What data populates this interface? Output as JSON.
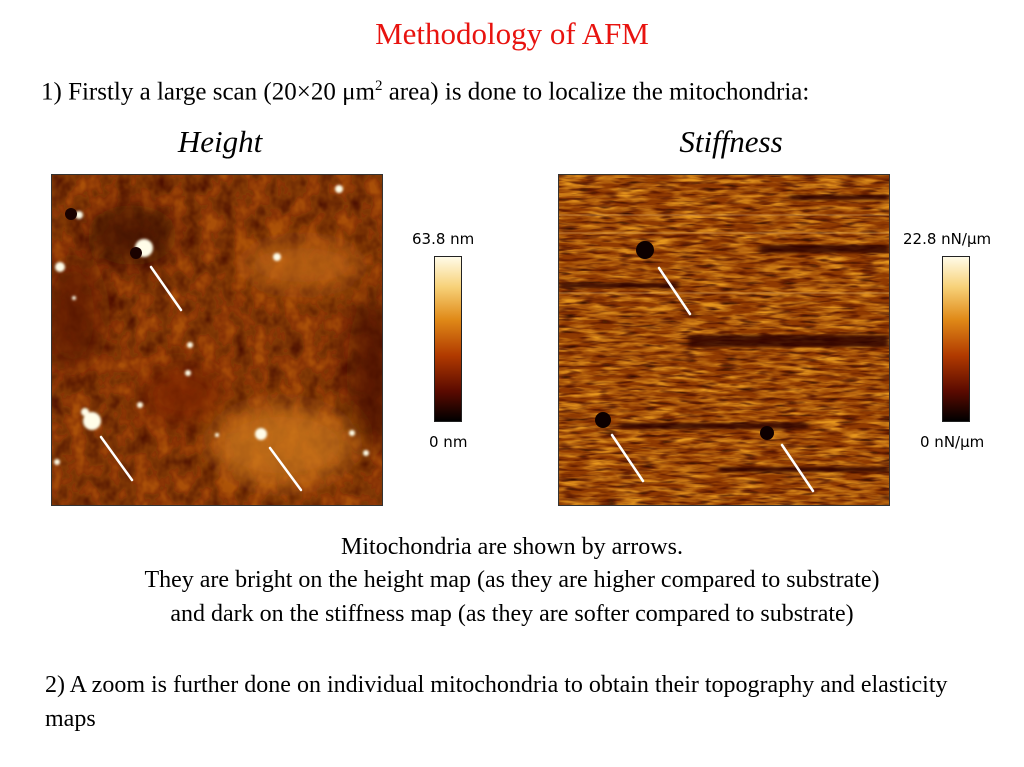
{
  "slide": {
    "title": "Methodology of AFM",
    "step1": {
      "prefix": "1) Firstly a large scan (20×20 ",
      "unit_base": "μm",
      "unit_sup": "2",
      "suffix": " area) is done to localize the mitochondria:"
    },
    "height_panel": {
      "title": "Height",
      "scale_max": "63.8 nm",
      "scale_min": "0 nm"
    },
    "stiffness_panel": {
      "title": "Stiffness",
      "scale_max": "22.8 nN/μm",
      "scale_min": "0 nN/μm"
    },
    "caption": {
      "line1": "Mitochondria are shown by arrows.",
      "line2": "They are bright on the height map (as they are higher compared to substrate)",
      "line3": "and dark on the stiffness map (as they are softer compared to substrate)"
    },
    "step2": "2) A zoom is further done on individual mitochondria to obtain their topography and elasticity maps",
    "colors": {
      "title": "#e8130f",
      "map_base": "#a64e08",
      "colormap": [
        "#000000",
        "#5a0a00",
        "#b13a00",
        "#e08a18",
        "#f7d27a",
        "#fffbe8"
      ]
    }
  }
}
